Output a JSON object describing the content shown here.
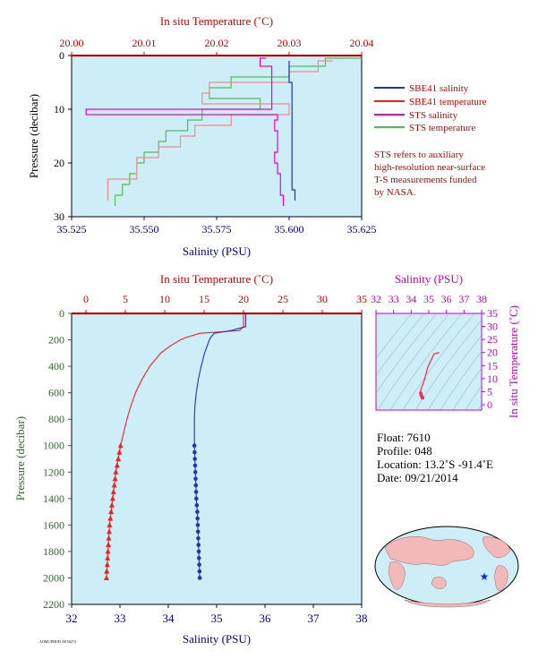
{
  "top_panel": {
    "top_axis_title": "In situ Temperature (˚C)",
    "top_ticks": [
      "20.00",
      "20.01",
      "20.02",
      "20.03",
      "20.04"
    ],
    "bottom_axis_title": "Salinity (PSU)",
    "bottom_ticks": [
      "35.525",
      "35.550",
      "35.575",
      "35.600",
      "35.625"
    ],
    "y_axis_title": "Pressure (decibar)",
    "y_ticks": [
      "0",
      "10",
      "20",
      "30"
    ],
    "legend": {
      "sbe_salinity": "SBE41 salinity",
      "sbe_temperature": "SBE41 temperature",
      "sts_salinity": "STS salinity",
      "sts_temperature": "STS temperature"
    },
    "note_lines": [
      "STS refers to auxiliary",
      "high-resolution near-surface",
      "T-S measurements funded",
      "by NASA."
    ]
  },
  "bottom_panel": {
    "top_axis_title": "In situ Temperature (˚C)",
    "top_ticks": [
      "0",
      "5",
      "10",
      "15",
      "20",
      "25",
      "30",
      "35"
    ],
    "bottom_axis_title": "Salinity (PSU)",
    "bottom_ticks": [
      "32",
      "33",
      "34",
      "35",
      "36",
      "37",
      "38"
    ],
    "y_axis_title": "Pressure (decibar)",
    "y_ticks": [
      "0",
      "200",
      "400",
      "600",
      "800",
      "1000",
      "1200",
      "1400",
      "1600",
      "1800",
      "2000",
      "2200"
    ]
  },
  "ts_panel": {
    "top_axis_title": "Salinity (PSU)",
    "top_ticks": [
      "32",
      "33",
      "34",
      "35",
      "36",
      "37",
      "38"
    ],
    "right_axis_title": "In situ Temperature (˚C)",
    "right_ticks": [
      "0",
      "5",
      "10",
      "15",
      "20",
      "25",
      "30",
      "35"
    ]
  },
  "float_info": {
    "float": "Float:  7610",
    "profile": "Profile:  048",
    "location": "Location:  13.2˚S  -91.4˚E",
    "date": "Date:  09/21/2014"
  },
  "footer_code": "AOML/PHOD  20150274",
  "colors": {
    "plot_bg": "#cdeef7",
    "salinity": "#2233bb",
    "temperature": "#ee2222",
    "sts_salinity": "#ee00cc",
    "sts_temperature": "#55bb55",
    "sbe_temp_light": "#f08a8a",
    "axis_red": "#cc0000",
    "axis_blue": "#000099",
    "axis_magenta": "#cc00cc",
    "axis_green": "#336633"
  },
  "chart_data": [
    {
      "type": "line",
      "name": "near-surface profile",
      "x_temperature_range": [
        20.0,
        20.04
      ],
      "x_salinity_range": [
        35.525,
        35.625
      ],
      "ylim": [
        30,
        0
      ],
      "series": [
        {
          "name": "SBE41 salinity",
          "pressure": [
            1,
            3,
            5,
            7,
            9,
            11,
            13,
            15,
            17,
            19,
            21,
            23,
            25,
            27
          ],
          "values": [
            35.6,
            35.6,
            35.6,
            35.601,
            35.601,
            35.601,
            35.601,
            35.601,
            35.601,
            35.601,
            35.601,
            35.601,
            35.601,
            35.602
          ]
        },
        {
          "name": "SBE41 temperature",
          "pressure": [
            1,
            3,
            5,
            7,
            9,
            11,
            13,
            15,
            17,
            19,
            21,
            23,
            25,
            27
          ],
          "values": [
            20.036,
            20.034,
            20.03,
            20.019,
            20.018,
            20.03,
            20.022,
            20.017,
            20.015,
            20.012,
            20.009,
            20.009,
            20.005,
            20.005
          ]
        },
        {
          "name": "STS salinity",
          "pressure": [
            0.5,
            2,
            4,
            6,
            8,
            10,
            11,
            12,
            14,
            16,
            18,
            20,
            22,
            24,
            26,
            28
          ],
          "values": [
            35.592,
            35.59,
            35.594,
            35.594,
            35.594,
            35.594,
            35.53,
            35.596,
            35.595,
            35.596,
            35.596,
            35.595,
            35.596,
            35.597,
            35.597,
            35.598
          ]
        },
        {
          "name": "STS temperature",
          "pressure": [
            0.5,
            2,
            4,
            6,
            8,
            10,
            12,
            14,
            16,
            18,
            20,
            22,
            24,
            26,
            28
          ],
          "values": [
            20.04,
            20.035,
            20.03,
            20.022,
            20.019,
            20.026,
            20.018,
            20.016,
            20.013,
            20.012,
            20.01,
            20.009,
            20.008,
            20.007,
            20.006
          ]
        }
      ]
    },
    {
      "type": "line",
      "name": "full-depth profile",
      "x_temperature_range": [
        0,
        35
      ],
      "x_salinity_range": [
        32,
        38
      ],
      "ylim": [
        2200,
        0
      ],
      "series": [
        {
          "name": "Temperature",
          "pressure": [
            5,
            50,
            100,
            130,
            150,
            180,
            200,
            250,
            300,
            400,
            500,
            600,
            700,
            800,
            900,
            1000,
            1100,
            1200,
            1300,
            1400,
            1500,
            1600,
            1700,
            1800,
            1900,
            2000
          ],
          "values": [
            20.0,
            20.0,
            20.0,
            19.5,
            14.5,
            12.8,
            12.0,
            10.6,
            9.5,
            8.1,
            7.1,
            6.3,
            5.7,
            5.2,
            4.8,
            4.4,
            4.1,
            3.8,
            3.6,
            3.4,
            3.2,
            3.0,
            2.9,
            2.8,
            2.7,
            2.6
          ]
        },
        {
          "name": "Salinity",
          "pressure": [
            5,
            50,
            100,
            130,
            150,
            180,
            200,
            250,
            300,
            400,
            500,
            600,
            700,
            800,
            900,
            1000,
            1100,
            1200,
            1300,
            1400,
            1500,
            1600,
            1700,
            1800,
            1900,
            2000
          ],
          "values": [
            35.6,
            35.6,
            35.6,
            35.3,
            34.95,
            34.88,
            34.85,
            34.8,
            34.75,
            34.68,
            34.62,
            34.58,
            34.55,
            34.54,
            34.54,
            34.54,
            34.55,
            34.56,
            34.57,
            34.58,
            34.6,
            34.61,
            34.62,
            34.63,
            34.64,
            34.65
          ]
        },
        {
          "name": "Temperature markers",
          "pressure": [
            1000,
            1050,
            1100,
            1150,
            1200,
            1250,
            1300,
            1350,
            1400,
            1450,
            1500,
            1550,
            1600,
            1650,
            1700,
            1750,
            1800,
            1850,
            1900,
            1950,
            2000
          ],
          "values": [
            4.4,
            4.25,
            4.1,
            3.95,
            3.8,
            3.7,
            3.6,
            3.5,
            3.4,
            3.3,
            3.2,
            3.1,
            3.0,
            2.95,
            2.9,
            2.85,
            2.8,
            2.75,
            2.7,
            2.65,
            2.6
          ]
        },
        {
          "name": "Salinity markers",
          "pressure": [
            1000,
            1050,
            1100,
            1150,
            1200,
            1250,
            1300,
            1350,
            1400,
            1450,
            1500,
            1550,
            1600,
            1650,
            1700,
            1750,
            1800,
            1850,
            1900,
            1950,
            2000
          ],
          "values": [
            34.54,
            34.545,
            34.55,
            34.555,
            34.56,
            34.565,
            34.57,
            34.575,
            34.58,
            34.59,
            34.6,
            34.605,
            34.61,
            34.615,
            34.62,
            34.625,
            34.63,
            34.635,
            34.64,
            34.645,
            34.65
          ]
        }
      ]
    },
    {
      "type": "scatter",
      "name": "T-S diagram",
      "xlim": [
        32,
        38
      ],
      "ylim": [
        0,
        35
      ],
      "series": [
        {
          "name": "T-S",
          "x": [
            35.6,
            35.3,
            34.95,
            34.85,
            34.75,
            34.68,
            34.62,
            34.58,
            34.55,
            34.54,
            34.57,
            34.6,
            34.63,
            34.65
          ],
          "y": [
            20.0,
            19.5,
            14.5,
            12.0,
            9.5,
            8.1,
            7.1,
            6.3,
            5.7,
            4.4,
            3.6,
            3.2,
            2.8,
            2.6
          ]
        }
      ]
    }
  ]
}
